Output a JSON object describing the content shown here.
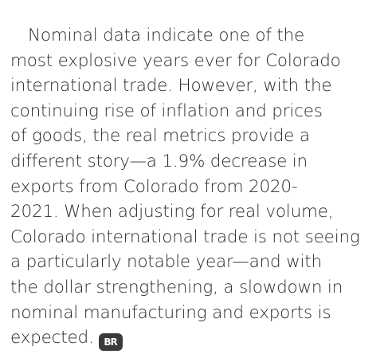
{
  "article": {
    "lines": [
      "Nominal data indicate one of the",
      "most explosive years ever for Colorado",
      "international trade. However, with the",
      "continuing rise of inflation and prices",
      "of goods, the real metrics provide a",
      "different story—a 1.9% decrease in",
      "exports from Colorado from 2020-",
      "2021. When adjusting for real volume,",
      "Colorado international trade is not seeing",
      "a particularly notable year—and with",
      "the dollar strengthening, a slowdown in",
      "nominal manufacturing and exports is",
      "expected."
    ],
    "logo": "BR"
  }
}
